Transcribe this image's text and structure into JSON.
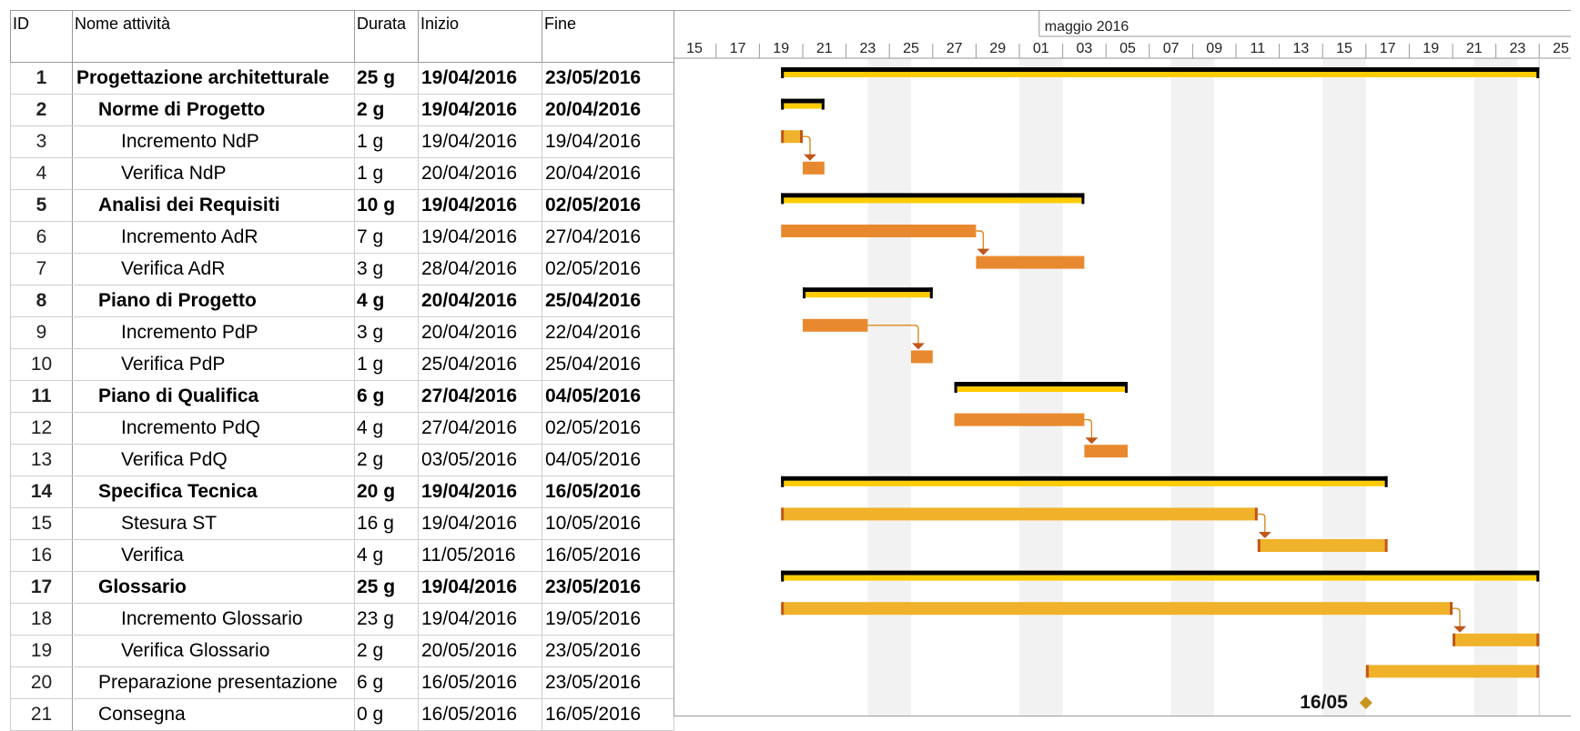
{
  "headers": {
    "id": "ID",
    "name": "Nome attività",
    "duration": "Durata",
    "start": "Inizio",
    "end": "Fine"
  },
  "timeline": {
    "month_label": "maggio 2016",
    "ticks": [
      "15",
      "17",
      "19",
      "21",
      "23",
      "25",
      "27",
      "29",
      "01",
      "03",
      "05",
      "07",
      "09",
      "11",
      "13",
      "15",
      "17",
      "19",
      "21",
      "23",
      "25"
    ]
  },
  "colors": {
    "summary_bar": "#FFCC00",
    "summary_bracket": "#000000",
    "task_orange": "#E8892F",
    "task_gold": "#F0B22A",
    "task_edge": "#C0561A",
    "arrow": "#D98A1E",
    "weekend_shade": "#F2F2F2",
    "milestone": "#C8961E"
  },
  "tasks": [
    {
      "id": "1",
      "name": "Progettazione architetturale",
      "duration": "25 g",
      "start": "19/04/2016",
      "end": "23/05/2016",
      "level": 0,
      "bold": true,
      "type": "summary",
      "s": 4,
      "e": 39
    },
    {
      "id": "2",
      "name": "Norme di Progetto",
      "duration": "2 g",
      "start": "19/04/2016",
      "end": "20/04/2016",
      "level": 1,
      "bold": true,
      "type": "summary",
      "s": 4,
      "e": 6
    },
    {
      "id": "3",
      "name": "Incremento NdP",
      "duration": "1 g",
      "start": "19/04/2016",
      "end": "19/04/2016",
      "level": 2,
      "bold": false,
      "type": "gold",
      "s": 4,
      "e": 5
    },
    {
      "id": "4",
      "name": "Verifica NdP",
      "duration": "1 g",
      "start": "20/04/2016",
      "end": "20/04/2016",
      "level": 2,
      "bold": false,
      "type": "orange",
      "s": 5,
      "e": 6
    },
    {
      "id": "5",
      "name": "Analisi dei Requisiti",
      "duration": "10 g",
      "start": "19/04/2016",
      "end": "02/05/2016",
      "level": 1,
      "bold": true,
      "type": "summary",
      "s": 4,
      "e": 18
    },
    {
      "id": "6",
      "name": "Incremento AdR",
      "duration": "7 g",
      "start": "19/04/2016",
      "end": "27/04/2016",
      "level": 2,
      "bold": false,
      "type": "orange",
      "s": 4,
      "e": 13
    },
    {
      "id": "7",
      "name": "Verifica AdR",
      "duration": "3 g",
      "start": "28/04/2016",
      "end": "02/05/2016",
      "level": 2,
      "bold": false,
      "type": "orange",
      "s": 13,
      "e": 18
    },
    {
      "id": "8",
      "name": "Piano di Progetto",
      "duration": "4 g",
      "start": "20/04/2016",
      "end": "25/04/2016",
      "level": 1,
      "bold": true,
      "type": "summary",
      "s": 5,
      "e": 11
    },
    {
      "id": "9",
      "name": "Incremento PdP",
      "duration": "3 g",
      "start": "20/04/2016",
      "end": "22/04/2016",
      "level": 2,
      "bold": false,
      "type": "orange",
      "s": 5,
      "e": 8
    },
    {
      "id": "10",
      "name": "Verifica PdP",
      "duration": "1 g",
      "start": "25/04/2016",
      "end": "25/04/2016",
      "level": 2,
      "bold": false,
      "type": "orange",
      "s": 10,
      "e": 11
    },
    {
      "id": "11",
      "name": "Piano di Qualifica",
      "duration": "6 g",
      "start": "27/04/2016",
      "end": "04/05/2016",
      "level": 1,
      "bold": true,
      "type": "summary",
      "s": 12,
      "e": 20
    },
    {
      "id": "12",
      "name": "Incremento PdQ",
      "duration": "4 g",
      "start": "27/04/2016",
      "end": "02/05/2016",
      "level": 2,
      "bold": false,
      "type": "orange",
      "s": 12,
      "e": 18
    },
    {
      "id": "13",
      "name": "Verifica PdQ",
      "duration": "2 g",
      "start": "03/05/2016",
      "end": "04/05/2016",
      "level": 2,
      "bold": false,
      "type": "orange",
      "s": 18,
      "e": 20
    },
    {
      "id": "14",
      "name": "Specifica Tecnica",
      "duration": "20 g",
      "start": "19/04/2016",
      "end": "16/05/2016",
      "level": 1,
      "bold": true,
      "type": "summary",
      "s": 4,
      "e": 32
    },
    {
      "id": "15",
      "name": "Stesura ST",
      "duration": "16 g",
      "start": "19/04/2016",
      "end": "10/05/2016",
      "level": 2,
      "bold": false,
      "type": "gold",
      "s": 4,
      "e": 26
    },
    {
      "id": "16",
      "name": "Verifica",
      "duration": "4 g",
      "start": "11/05/2016",
      "end": "16/05/2016",
      "level": 2,
      "bold": false,
      "type": "gold",
      "s": 26,
      "e": 32
    },
    {
      "id": "17",
      "name": "Glossario",
      "duration": "25 g",
      "start": "19/04/2016",
      "end": "23/05/2016",
      "level": 1,
      "bold": true,
      "type": "summary",
      "s": 4,
      "e": 39
    },
    {
      "id": "18",
      "name": "Incremento Glossario",
      "duration": "23 g",
      "start": "19/04/2016",
      "end": "19/05/2016",
      "level": 2,
      "bold": false,
      "type": "gold",
      "s": 4,
      "e": 35
    },
    {
      "id": "19",
      "name": "Verifica Glossario",
      "duration": "2 g",
      "start": "20/05/2016",
      "end": "23/05/2016",
      "level": 2,
      "bold": false,
      "type": "gold",
      "s": 35,
      "e": 39
    },
    {
      "id": "20",
      "name": "Preparazione presentazione",
      "duration": "6 g",
      "start": "16/05/2016",
      "end": "23/05/2016",
      "level": 1,
      "bold": false,
      "type": "gold",
      "s": 31,
      "e": 39
    },
    {
      "id": "21",
      "name": "Consegna",
      "duration": "0 g",
      "start": "16/05/2016",
      "end": "16/05/2016",
      "level": 1,
      "bold": false,
      "type": "milestone",
      "s": 31,
      "e": 31,
      "label": "16/05"
    }
  ],
  "links": [
    [
      3,
      4
    ],
    [
      6,
      7
    ],
    [
      9,
      10
    ],
    [
      12,
      13
    ],
    [
      15,
      16
    ],
    [
      18,
      19
    ]
  ]
}
